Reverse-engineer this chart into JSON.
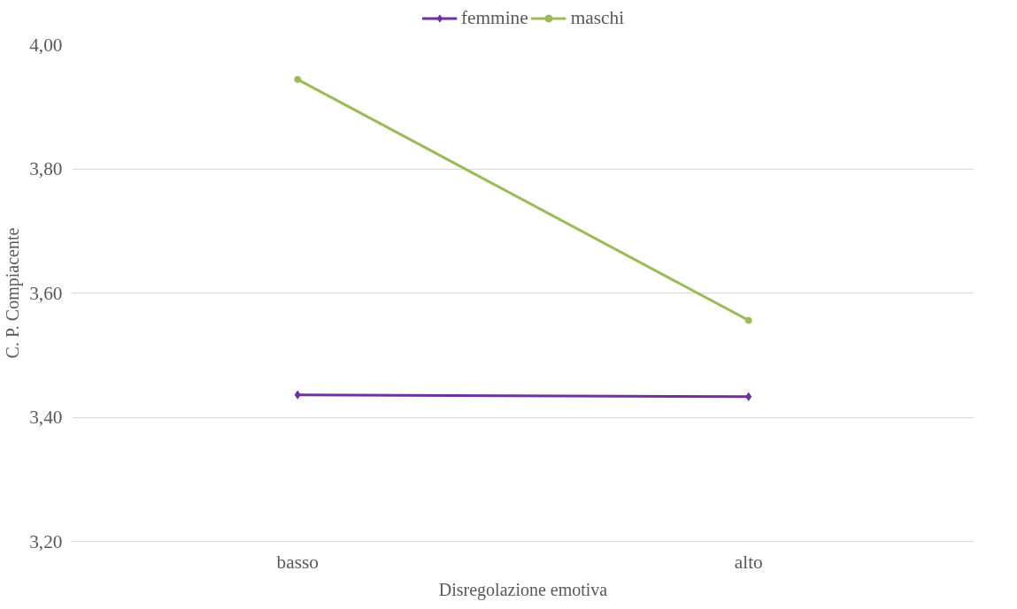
{
  "chart_data": {
    "type": "line",
    "xlabel": "Disregolazione emotiva",
    "ylabel": "C. P. Compiacente",
    "categories": [
      "basso",
      "alto"
    ],
    "series": [
      {
        "name": "femmine",
        "color": "#7030a0",
        "marker": "diamond",
        "values": [
          3.436,
          3.433
        ]
      },
      {
        "name": "maschi",
        "color": "#9bbb59",
        "marker": "circle",
        "values": [
          3.944,
          3.556
        ]
      }
    ],
    "ylim": [
      3.2,
      4.0
    ],
    "yticks": [
      {
        "value": 3.2,
        "label": "3,20"
      },
      {
        "value": 3.4,
        "label": "3,40"
      },
      {
        "value": 3.6,
        "label": "3,60"
      },
      {
        "value": 3.8,
        "label": "3,80"
      },
      {
        "value": 4.0,
        "label": "4,00"
      }
    ],
    "grid": "y",
    "legend": "top",
    "line_style": "solid"
  }
}
